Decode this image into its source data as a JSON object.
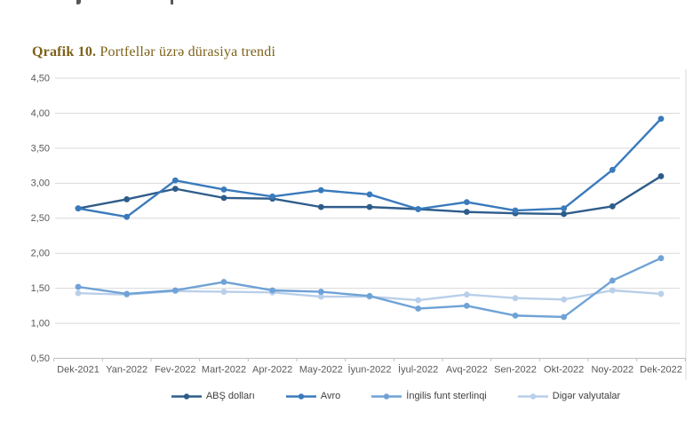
{
  "page": {
    "title_prefix": "Qrafik 10.",
    "title_rest": " Portfellər üzrə dürasiya trendi",
    "title_color": "#7d6118"
  },
  "chart_data": {
    "type": "line",
    "title": "Qrafik 10. Portfellər üzrə dürasiya trendi",
    "categories": [
      "Dek-2021",
      "Yan-2022",
      "Fev-2022",
      "Mart-2022",
      "Apr-2022",
      "May-2022",
      "İyun-2022",
      "İyul-2022",
      "Avq-2022",
      "Sen-2022",
      "Okt-2022",
      "Noy-2022",
      "Dek-2022"
    ],
    "series": [
      {
        "name": "ABŞ dolları",
        "color": "#2e5c8a",
        "values": [
          2.64,
          2.77,
          2.92,
          2.79,
          2.78,
          2.66,
          2.66,
          2.63,
          2.59,
          2.57,
          2.56,
          2.67,
          3.1
        ]
      },
      {
        "name": "Avro",
        "color": "#3a7abc",
        "values": [
          2.64,
          2.52,
          3.04,
          2.91,
          2.81,
          2.9,
          2.84,
          2.63,
          2.73,
          2.61,
          2.64,
          3.19,
          3.92
        ]
      },
      {
        "name": "İngilis funt sterlinqi",
        "color": "#6fa2d6",
        "values": [
          1.52,
          1.42,
          1.47,
          1.59,
          1.47,
          1.45,
          1.39,
          1.21,
          1.25,
          1.11,
          1.09,
          1.61,
          1.93
        ]
      },
      {
        "name": "Digər valyutalar",
        "color": "#b9cfe9",
        "values": [
          1.43,
          1.41,
          1.46,
          1.45,
          1.44,
          1.38,
          1.38,
          1.33,
          1.41,
          1.36,
          1.34,
          1.47,
          1.42
        ]
      }
    ],
    "ylim": [
      0.5,
      4.5
    ],
    "ytick_step": 0.5,
    "ytick_labels": [
      "0,50",
      "1,00",
      "1,50",
      "2,00",
      "2,50",
      "3,00",
      "3,50",
      "4,00",
      "4,50"
    ],
    "xlabel": "",
    "ylabel": "",
    "grid": true,
    "legend_position": "bottom",
    "axis_color": "#bfbfbf",
    "grid_color": "#d9d9d9",
    "tick_label_color": "#595959"
  }
}
